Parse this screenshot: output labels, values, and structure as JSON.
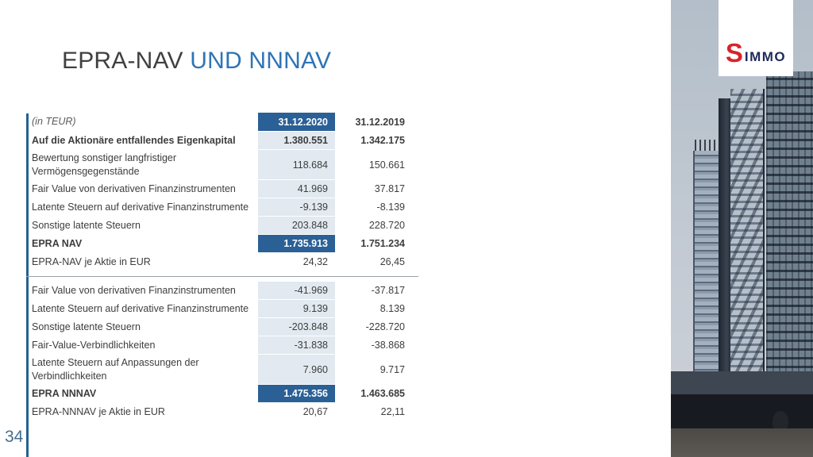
{
  "page_number": "34",
  "title": {
    "part1": "EPRA-NAV ",
    "part2": "UND NNNAV"
  },
  "logo": {
    "s": "S",
    "text": "IMMO"
  },
  "colors": {
    "accent_blue": "#2a6096",
    "shaded_column": "#e2e9f0",
    "title_blue": "#2e74b5",
    "logo_red": "#d8232a",
    "logo_navy": "#1b2b5a",
    "left_line_blue": "#24618f"
  },
  "table": {
    "unit_label": "(in TEUR)",
    "col_2020": "31.12.2020",
    "col_2019": "31.12.2019",
    "sections": [
      {
        "rows": [
          {
            "label": "Auf die Aktionäre entfallendes Eigenkapital",
            "v2020": "1.380.551",
            "v2019": "1.342.175",
            "bold": true,
            "shaded": true
          },
          {
            "label": "Bewertung sonstiger langfristiger Vermögensgegenstände",
            "v2020": "118.684",
            "v2019": "150.661",
            "shaded": true,
            "twoline": true
          },
          {
            "label": "Fair Value von derivativen Finanzinstrumenten",
            "v2020": "41.969",
            "v2019": "37.817",
            "shaded": true
          },
          {
            "label": "Latente Steuern auf derivative Finanzinstrumente",
            "v2020": "-9.139",
            "v2019": "-8.139",
            "shaded": true
          },
          {
            "label": "Sonstige latente Steuern",
            "v2020": "203.848",
            "v2019": "228.720",
            "shaded": true
          },
          {
            "label": "EPRA NAV",
            "v2020": "1.735.913",
            "v2019": "1.751.234",
            "bold": true,
            "highlight": true
          },
          {
            "label": "EPRA-NAV je Aktie in EUR",
            "v2020": "24,32",
            "v2019": "26,45"
          }
        ]
      },
      {
        "rows": [
          {
            "label": "Fair Value von derivativen Finanzinstrumenten",
            "v2020": "-41.969",
            "v2019": "-37.817",
            "shaded": true
          },
          {
            "label": "Latente Steuern auf derivative Finanzinstrumente",
            "v2020": "9.139",
            "v2019": "8.139",
            "shaded": true
          },
          {
            "label": "Sonstige latente Steuern",
            "v2020": "-203.848",
            "v2019": "-228.720",
            "shaded": true
          },
          {
            "label": "Fair-Value-Verbindlichkeiten",
            "v2020": "-31.838",
            "v2019": "-38.868",
            "shaded": true
          },
          {
            "label": "Latente Steuern auf Anpassungen der Verbindlichkeiten",
            "v2020": "7.960",
            "v2019": "9.717",
            "shaded": true,
            "twoline": true
          },
          {
            "label": "EPRA NNNAV",
            "v2020": "1.475.356",
            "v2019": "1.463.685",
            "bold": true,
            "highlight": true
          },
          {
            "label": "EPRA-NNNAV je Aktie in EUR",
            "v2020": "20,67",
            "v2019": "22,11"
          }
        ]
      }
    ]
  }
}
